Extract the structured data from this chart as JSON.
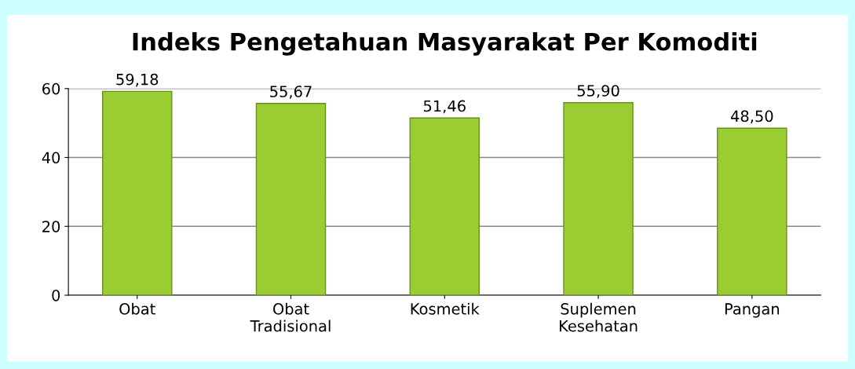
{
  "chart_data": {
    "type": "bar",
    "title": "Indeks Pengetahuan Masyarakat Per Komoditi",
    "categories": [
      "Obat",
      "Obat\nTradisional",
      "Kosmetik",
      "Suplemen\nKesehatan",
      "Pangan"
    ],
    "values": [
      59.18,
      55.67,
      51.46,
      55.9,
      48.5
    ],
    "value_labels": [
      "59,18",
      "55,67",
      "51,46",
      "55,90",
      "48,50"
    ],
    "color": "#9acd32",
    "ylim": [
      0,
      60
    ],
    "yticks": [
      0,
      20,
      40,
      60
    ],
    "grid": "y"
  }
}
